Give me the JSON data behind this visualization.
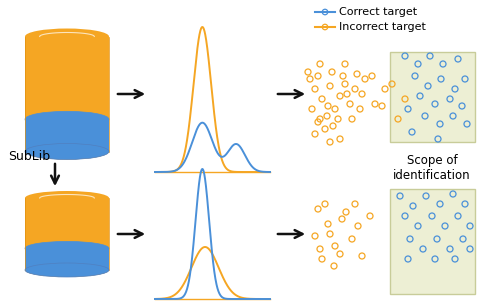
{
  "legend_correct": "Correct target",
  "legend_incorrect": "Incorrect target",
  "scope_text": "Scope of\nidentification",
  "sublib_text": "SubLib",
  "orange_color": "#F5A623",
  "blue_color": "#4A90D9",
  "green_box_color": "#EDEFD4",
  "green_box_edge": "#C8CC99",
  "bg_color": "#ffffff",
  "arrow_color": "#111111"
}
